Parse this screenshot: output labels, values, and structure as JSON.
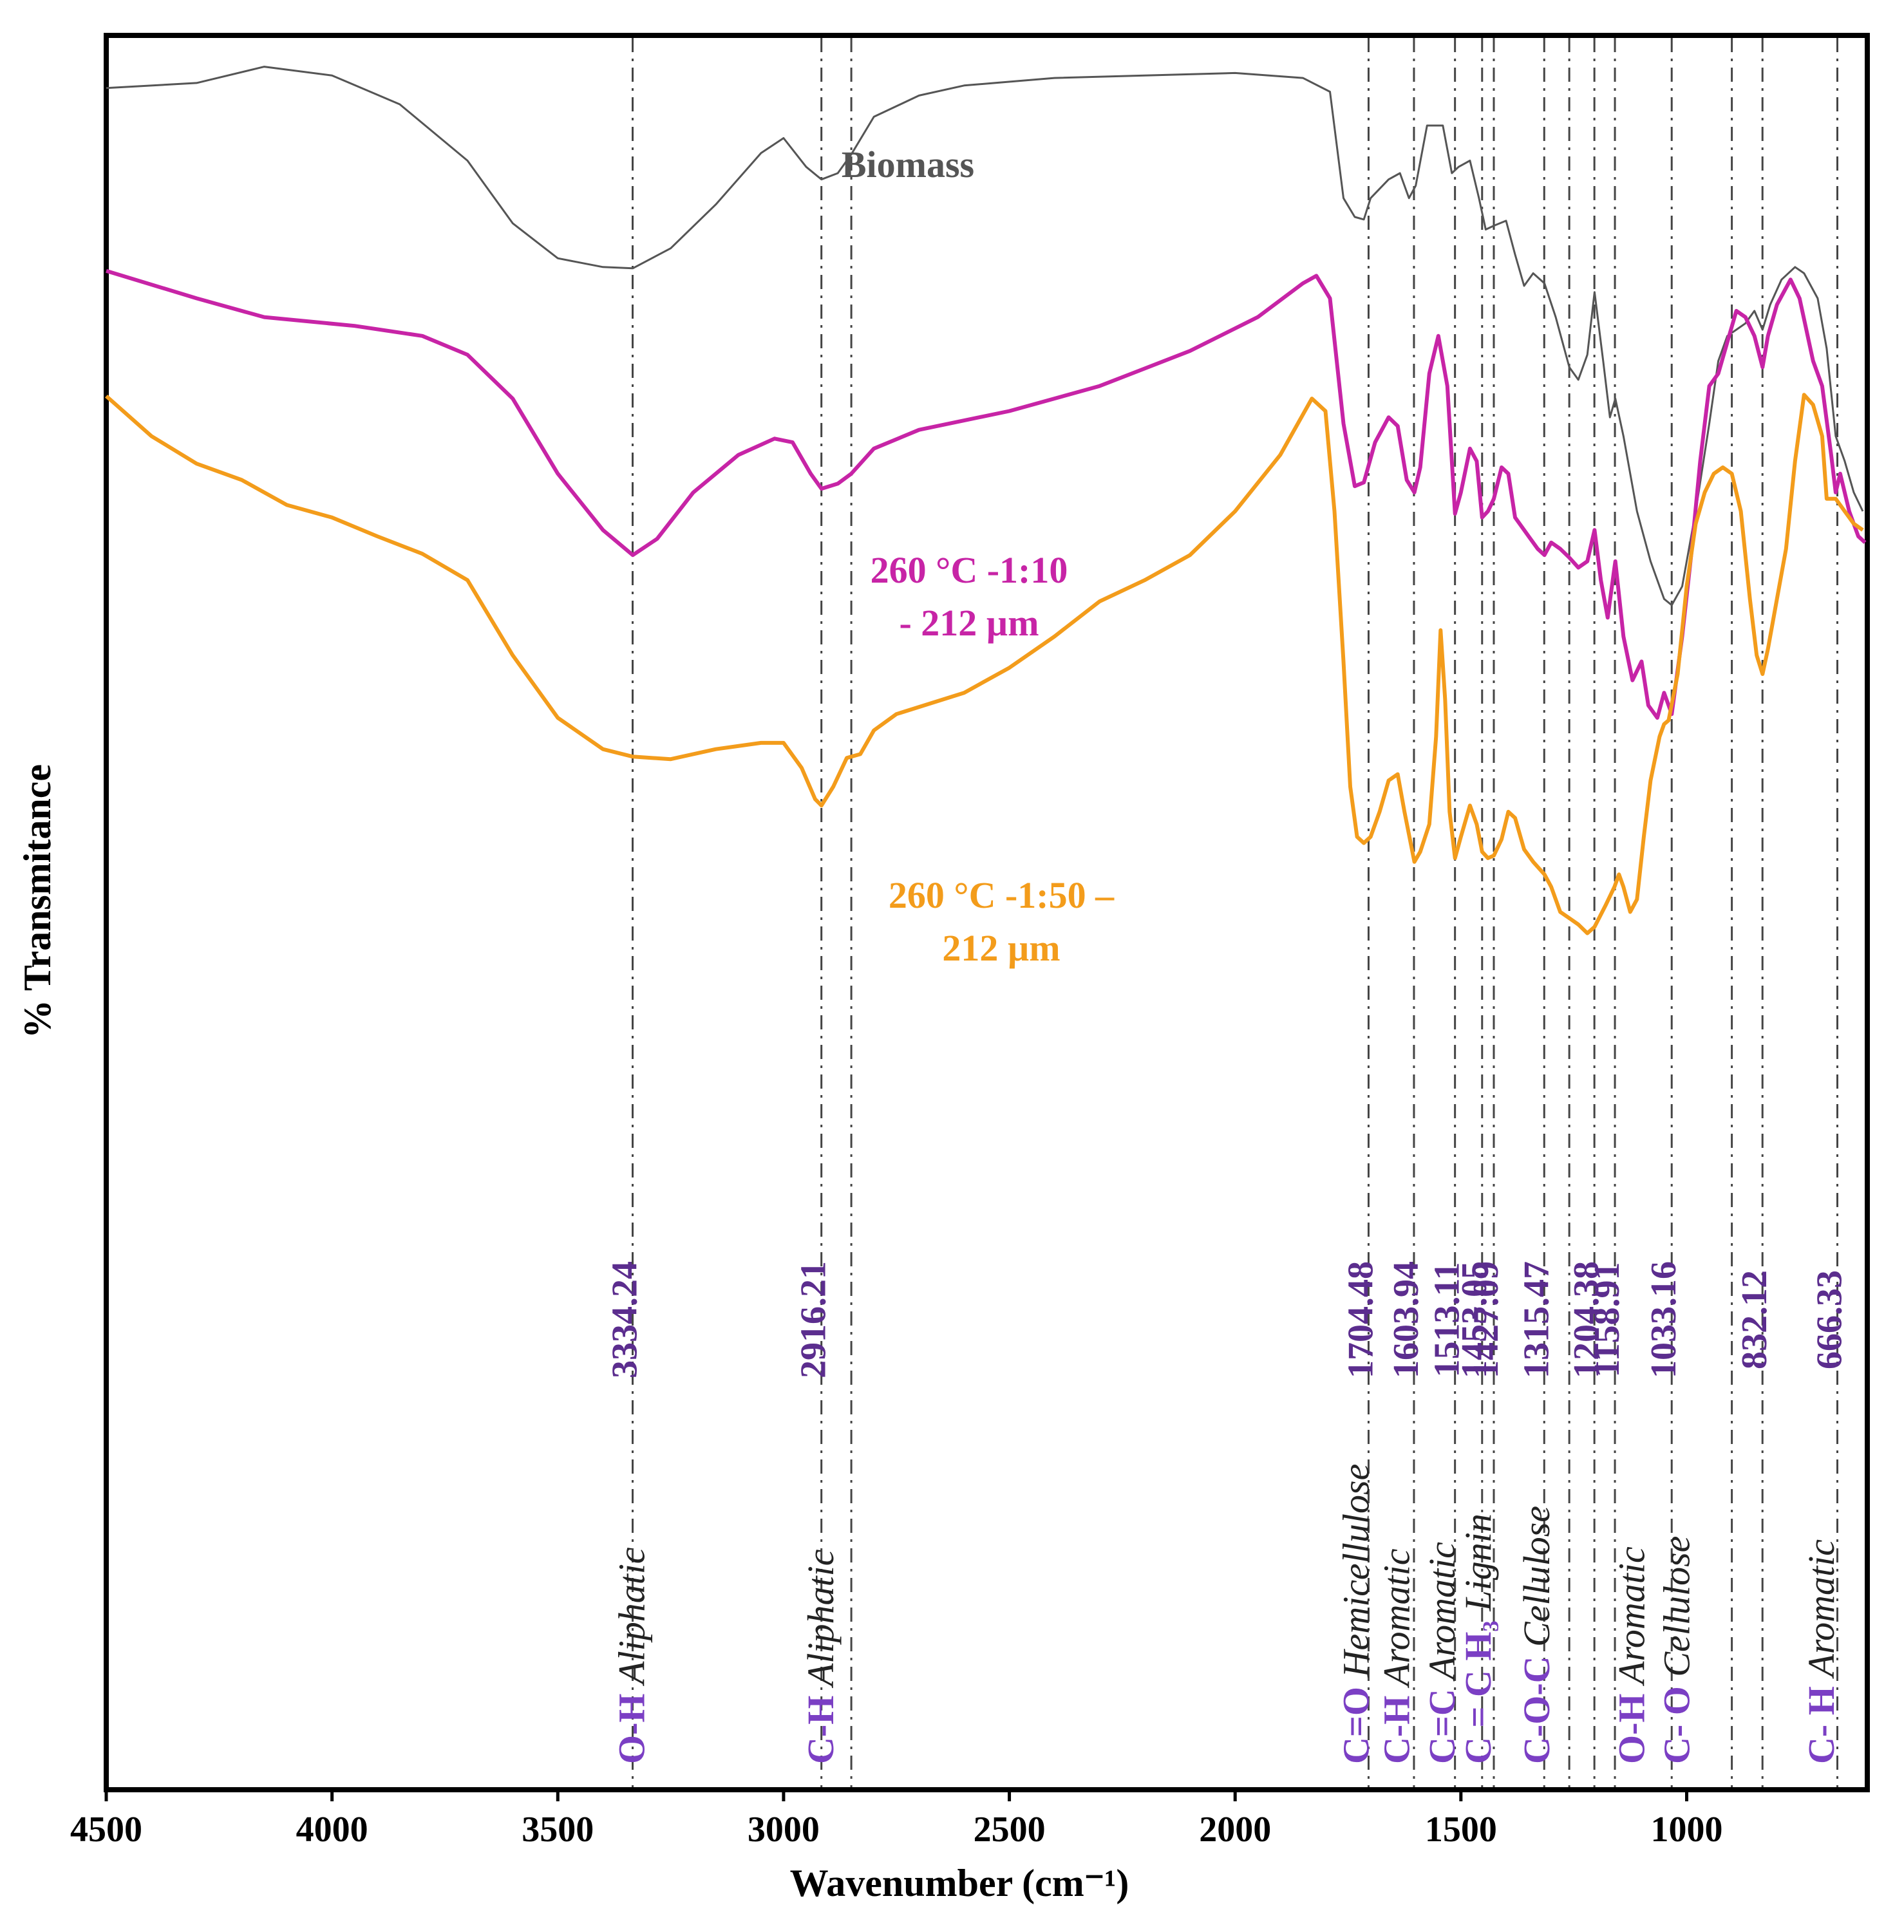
{
  "chart_data": {
    "type": "line",
    "title": "",
    "xlabel": "Wavenumber (cm⁻¹)",
    "ylabel": "% Transmitance",
    "xlim": [
      4500,
      600
    ],
    "ylim": [
      0,
      100
    ],
    "x_ticks": [
      4500,
      4000,
      3500,
      3000,
      2500,
      2000,
      1500,
      1000
    ],
    "x_tick_labels": [
      "4500",
      "4000",
      "3500",
      "3000",
      "2500",
      "2000",
      "1500",
      "1000"
    ],
    "grid": false,
    "colors": {
      "peak_label": "#5b2d8e",
      "bond_label": "#7b3fc4"
    },
    "series": [
      {
        "name": "Biomass",
        "label": "Biomass",
        "color": "#555555",
        "points": [
          [
            4500,
            95.8
          ],
          [
            4300,
            96.2
          ],
          [
            4150,
            97.5
          ],
          [
            4000,
            96.8
          ],
          [
            3850,
            94.5
          ],
          [
            3700,
            90
          ],
          [
            3600,
            85
          ],
          [
            3500,
            82.2
          ],
          [
            3400,
            81.5
          ],
          [
            3334,
            81.4
          ],
          [
            3250,
            83
          ],
          [
            3150,
            86.5
          ],
          [
            3050,
            90.6
          ],
          [
            3000,
            91.8
          ],
          [
            2950,
            89.5
          ],
          [
            2916,
            88.5
          ],
          [
            2880,
            89
          ],
          [
            2850,
            90.5
          ],
          [
            2800,
            93.5
          ],
          [
            2700,
            95.2
          ],
          [
            2600,
            96
          ],
          [
            2400,
            96.6
          ],
          [
            2200,
            96.8
          ],
          [
            2000,
            97
          ],
          [
            1850,
            96.6
          ],
          [
            1790,
            95.5
          ],
          [
            1760,
            87
          ],
          [
            1735,
            85.5
          ],
          [
            1715,
            85.3
          ],
          [
            1700,
            87
          ],
          [
            1660,
            88.5
          ],
          [
            1635,
            89
          ],
          [
            1615,
            87
          ],
          [
            1600,
            88
          ],
          [
            1575,
            92.8
          ],
          [
            1540,
            92.8
          ],
          [
            1520,
            89
          ],
          [
            1505,
            89.5
          ],
          [
            1480,
            90
          ],
          [
            1460,
            87
          ],
          [
            1445,
            84.5
          ],
          [
            1427,
            84.8
          ],
          [
            1400,
            85.2
          ],
          [
            1380,
            82.5
          ],
          [
            1360,
            80
          ],
          [
            1340,
            81
          ],
          [
            1315,
            80.2
          ],
          [
            1290,
            77.5
          ],
          [
            1260,
            73.5
          ],
          [
            1240,
            72.5
          ],
          [
            1220,
            74.5
          ],
          [
            1204,
            79.5
          ],
          [
            1185,
            74
          ],
          [
            1170,
            69.5
          ],
          [
            1158,
            71
          ],
          [
            1140,
            68
          ],
          [
            1110,
            62
          ],
          [
            1080,
            58
          ],
          [
            1050,
            55
          ],
          [
            1033,
            54.5
          ],
          [
            1010,
            56
          ],
          [
            980,
            62
          ],
          [
            950,
            69
          ],
          [
            930,
            74
          ],
          [
            910,
            76
          ],
          [
            890,
            76.5
          ],
          [
            870,
            77
          ],
          [
            850,
            78
          ],
          [
            832,
            76.5
          ],
          [
            815,
            78.5
          ],
          [
            790,
            80.5
          ],
          [
            760,
            81.5
          ],
          [
            740,
            81
          ],
          [
            710,
            79
          ],
          [
            690,
            75
          ],
          [
            670,
            68
          ],
          [
            650,
            66
          ],
          [
            630,
            63.5
          ],
          [
            610,
            62
          ]
        ]
      },
      {
        "name": "260 °C -1:10 - 212 µm",
        "label": [
          "260 °C -1:10",
          "- 212 µm"
        ],
        "color": "#c724a6",
        "points": [
          [
            4500,
            81.2
          ],
          [
            4300,
            79
          ],
          [
            4150,
            77.5
          ],
          [
            3950,
            76.8
          ],
          [
            3800,
            76
          ],
          [
            3700,
            74.5
          ],
          [
            3600,
            71
          ],
          [
            3500,
            65
          ],
          [
            3400,
            60.5
          ],
          [
            3334,
            58.5
          ],
          [
            3280,
            59.8
          ],
          [
            3200,
            63.5
          ],
          [
            3100,
            66.5
          ],
          [
            3020,
            67.8
          ],
          [
            2980,
            67.5
          ],
          [
            2940,
            65
          ],
          [
            2916,
            63.8
          ],
          [
            2880,
            64.2
          ],
          [
            2850,
            65
          ],
          [
            2800,
            67
          ],
          [
            2700,
            68.5
          ],
          [
            2500,
            70
          ],
          [
            2300,
            72
          ],
          [
            2100,
            74.8
          ],
          [
            1950,
            77.5
          ],
          [
            1850,
            80.2
          ],
          [
            1820,
            80.8
          ],
          [
            1790,
            79
          ],
          [
            1760,
            69
          ],
          [
            1735,
            64
          ],
          [
            1715,
            64.3
          ],
          [
            1690,
            67.5
          ],
          [
            1660,
            69.5
          ],
          [
            1640,
            68.8
          ],
          [
            1620,
            64.5
          ],
          [
            1603,
            63.5
          ],
          [
            1590,
            65.5
          ],
          [
            1570,
            73
          ],
          [
            1550,
            76
          ],
          [
            1530,
            72
          ],
          [
            1513,
            61.8
          ],
          [
            1500,
            63.5
          ],
          [
            1480,
            67
          ],
          [
            1465,
            66
          ],
          [
            1453,
            61.5
          ],
          [
            1440,
            62
          ],
          [
            1427,
            63
          ],
          [
            1410,
            65.5
          ],
          [
            1395,
            65
          ],
          [
            1380,
            61.5
          ],
          [
            1350,
            60
          ],
          [
            1330,
            59
          ],
          [
            1315,
            58.5
          ],
          [
            1300,
            59.5
          ],
          [
            1280,
            59
          ],
          [
            1260,
            58.3
          ],
          [
            1240,
            57.5
          ],
          [
            1220,
            58
          ],
          [
            1204,
            60.5
          ],
          [
            1190,
            56.5
          ],
          [
            1175,
            53.5
          ],
          [
            1160,
            57.5
          ],
          [
            1158,
            58
          ],
          [
            1140,
            52
          ],
          [
            1120,
            48.5
          ],
          [
            1100,
            50
          ],
          [
            1085,
            46.5
          ],
          [
            1065,
            45.5
          ],
          [
            1050,
            47.5
          ],
          [
            1033,
            45.8
          ],
          [
            1010,
            52
          ],
          [
            990,
            58.5
          ],
          [
            970,
            66
          ],
          [
            950,
            72
          ],
          [
            930,
            73
          ],
          [
            910,
            75.5
          ],
          [
            890,
            78
          ],
          [
            870,
            77.5
          ],
          [
            850,
            76
          ],
          [
            832,
            73.5
          ],
          [
            820,
            76
          ],
          [
            800,
            78.5
          ],
          [
            770,
            80.5
          ],
          [
            750,
            79
          ],
          [
            720,
            74
          ],
          [
            700,
            72
          ],
          [
            680,
            66.5
          ],
          [
            670,
            63.5
          ],
          [
            660,
            65
          ],
          [
            640,
            62
          ],
          [
            620,
            60
          ],
          [
            605,
            59.5
          ]
        ]
      },
      {
        "name": "260 °C -1:50 – 212 µm",
        "label": [
          "260 °C -1:50 –",
          "212 µm"
        ],
        "color": "#f39c1b",
        "points": [
          [
            4500,
            71.2
          ],
          [
            4400,
            68
          ],
          [
            4300,
            65.8
          ],
          [
            4200,
            64.5
          ],
          [
            4100,
            62.5
          ],
          [
            4000,
            61.5
          ],
          [
            3900,
            60
          ],
          [
            3800,
            58.6
          ],
          [
            3700,
            56.5
          ],
          [
            3600,
            50.5
          ],
          [
            3500,
            45.5
          ],
          [
            3400,
            43
          ],
          [
            3334,
            42.4
          ],
          [
            3250,
            42.2
          ],
          [
            3150,
            43
          ],
          [
            3050,
            43.5
          ],
          [
            3000,
            43.5
          ],
          [
            2960,
            41.5
          ],
          [
            2930,
            39
          ],
          [
            2916,
            38.5
          ],
          [
            2890,
            40
          ],
          [
            2860,
            42.3
          ],
          [
            2830,
            42.6
          ],
          [
            2800,
            44.5
          ],
          [
            2750,
            45.8
          ],
          [
            2600,
            47.5
          ],
          [
            2500,
            49.5
          ],
          [
            2400,
            52
          ],
          [
            2300,
            54.8
          ],
          [
            2200,
            56.5
          ],
          [
            2100,
            58.5
          ],
          [
            2000,
            62
          ],
          [
            1900,
            66.5
          ],
          [
            1830,
            71
          ],
          [
            1800,
            70
          ],
          [
            1780,
            62
          ],
          [
            1760,
            50
          ],
          [
            1745,
            40
          ],
          [
            1730,
            36
          ],
          [
            1715,
            35.5
          ],
          [
            1700,
            36
          ],
          [
            1680,
            38
          ],
          [
            1660,
            40.5
          ],
          [
            1640,
            41
          ],
          [
            1625,
            38
          ],
          [
            1603,
            34
          ],
          [
            1590,
            34.8
          ],
          [
            1570,
            37
          ],
          [
            1555,
            44
          ],
          [
            1545,
            52.5
          ],
          [
            1535,
            47
          ],
          [
            1525,
            38
          ],
          [
            1513,
            34.3
          ],
          [
            1500,
            36
          ],
          [
            1480,
            38.5
          ],
          [
            1465,
            37
          ],
          [
            1453,
            34.8
          ],
          [
            1440,
            34.3
          ],
          [
            1427,
            34.5
          ],
          [
            1410,
            35.8
          ],
          [
            1395,
            38
          ],
          [
            1380,
            37.5
          ],
          [
            1360,
            35
          ],
          [
            1340,
            34
          ],
          [
            1315,
            33
          ],
          [
            1300,
            32
          ],
          [
            1280,
            30
          ],
          [
            1260,
            29.5
          ],
          [
            1240,
            29
          ],
          [
            1220,
            28.3
          ],
          [
            1204,
            28.8
          ],
          [
            1180,
            30.5
          ],
          [
            1160,
            32
          ],
          [
            1150,
            33
          ],
          [
            1140,
            32
          ],
          [
            1125,
            30
          ],
          [
            1110,
            31
          ],
          [
            1095,
            36
          ],
          [
            1080,
            40.5
          ],
          [
            1060,
            44
          ],
          [
            1050,
            45
          ],
          [
            1040,
            45.3
          ],
          [
            1020,
            49
          ],
          [
            1000,
            56
          ],
          [
            980,
            61
          ],
          [
            960,
            63.5
          ],
          [
            940,
            65
          ],
          [
            920,
            65.5
          ],
          [
            900,
            65
          ],
          [
            880,
            62
          ],
          [
            860,
            55
          ],
          [
            845,
            50.5
          ],
          [
            832,
            49
          ],
          [
            820,
            51
          ],
          [
            800,
            55
          ],
          [
            780,
            59
          ],
          [
            760,
            66
          ],
          [
            740,
            71.3
          ],
          [
            720,
            70.5
          ],
          [
            700,
            68
          ],
          [
            690,
            63
          ],
          [
            670,
            63
          ],
          [
            650,
            62
          ],
          [
            630,
            61
          ],
          [
            610,
            60.5
          ]
        ]
      }
    ],
    "peak_labels": [
      "3334.24",
      "2916.21",
      "1704.48",
      "1603.94",
      "1513.11",
      "1453.05",
      "1427.09",
      "1315.47",
      "1204.38",
      "1158.91",
      "1033.16",
      "832.12",
      "666.33"
    ],
    "band_assignments": [
      {
        "bond": "O-H",
        "region": "Aliphatic"
      },
      {
        "bond": "C-H",
        "region": "Aliphatic"
      },
      {
        "bond": "C=O",
        "region": "Hemicellulose"
      },
      {
        "bond": "C-H",
        "region": "Aromatic"
      },
      {
        "bond": "C=C",
        "region": "Aromatic"
      },
      {
        "bond": "C = C H₃",
        "region": "Lignin"
      },
      {
        "bond": "C-O-C",
        "region": "Cellulose"
      },
      {
        "bond": "O-H",
        "region": "Aromatic"
      },
      {
        "bond": "C- O",
        "region": "Cellulose"
      },
      {
        "bond": "C- H",
        "region": "Aromatic"
      }
    ]
  }
}
